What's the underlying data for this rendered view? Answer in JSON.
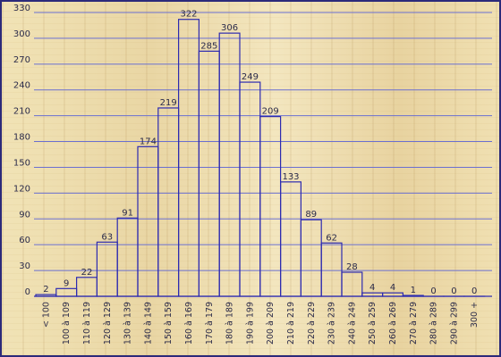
{
  "chart_data": {
    "type": "bar",
    "categories": [
      "< 100",
      "100 à 109",
      "110 à 119",
      "120 à 129",
      "130 à 139",
      "140 à 149",
      "150 à 159",
      "160 à 169",
      "170 à 179",
      "180 à 189",
      "190 à 199",
      "200 à 209",
      "210 à 219",
      "220 à 229",
      "230 à 239",
      "240 à 249",
      "250 à 259",
      "260 à 269",
      "270 à 279",
      "280 à 289",
      "290 à 299",
      "300 +"
    ],
    "values": [
      2,
      9,
      22,
      63,
      91,
      174,
      219,
      322,
      285,
      306,
      249,
      209,
      133,
      89,
      62,
      28,
      4,
      4,
      1,
      0,
      0,
      0
    ],
    "yticks": [
      0,
      30,
      60,
      90,
      120,
      150,
      180,
      210,
      240,
      270,
      300,
      330
    ],
    "ylim": [
      0,
      330
    ],
    "title": "",
    "xlabel": "",
    "ylabel": "",
    "grid": true,
    "colors": {
      "bar_stroke": "#2d2bb0",
      "grid": "#6a6fd0",
      "text": "#2b2b4a"
    }
  }
}
